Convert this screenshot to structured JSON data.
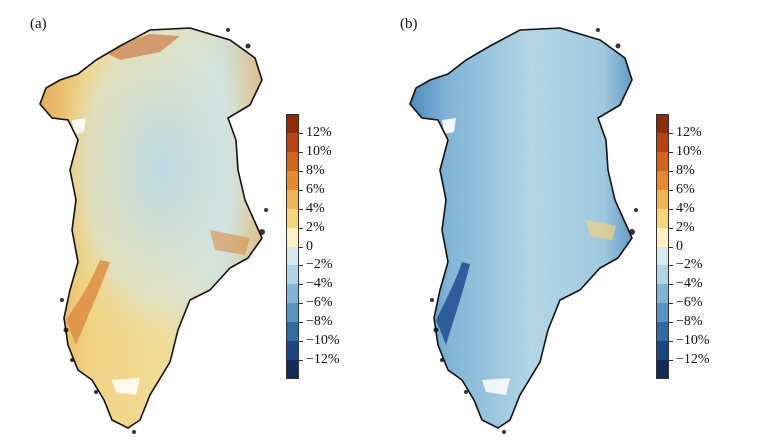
{
  "panels": [
    {
      "id": "a",
      "label": "(a)"
    },
    {
      "id": "b",
      "label": "(b)"
    }
  ],
  "colorbar": {
    "labels": [
      "12%",
      "10%",
      "8%",
      "6%",
      "4%",
      "2%",
      "0",
      "−2%",
      "−4%",
      "−6%",
      "−8%",
      "−10%",
      "−12%"
    ],
    "colors": [
      "#8c2d04",
      "#b84310",
      "#d76419",
      "#e8892c",
      "#f3b452",
      "#f5d678",
      "#fbf3c6",
      "#d6eaf2",
      "#aed4e6",
      "#7fb6d6",
      "#5495c3",
      "#2f6ca7",
      "#1b4681",
      "#122a5a"
    ]
  },
  "legend_colors": {
    "outline": "#111111"
  }
}
